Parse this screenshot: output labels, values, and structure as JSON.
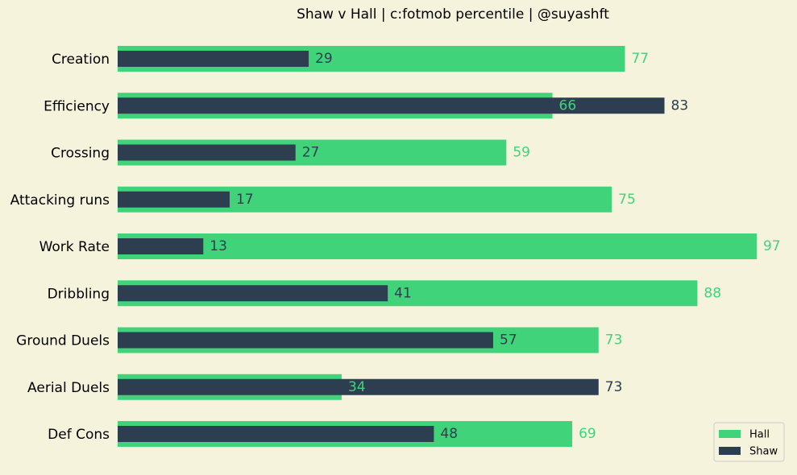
{
  "chart_data": {
    "type": "hbar-overlay",
    "title": "Shaw v Hall | c:fotmob percentile | @suyashft",
    "categories": [
      "Creation",
      "Efficiency",
      "Crossing",
      "Attacking runs",
      "Work Rate",
      "Dribbling",
      "Ground Duels",
      "Aerial Duels",
      "Def Cons"
    ],
    "series": [
      {
        "name": "Hall",
        "color": "#41d37a",
        "values": [
          77,
          66,
          59,
          75,
          97,
          88,
          73,
          34,
          69
        ]
      },
      {
        "name": "Shaw",
        "color": "#2c3e50",
        "values": [
          29,
          83,
          27,
          17,
          13,
          41,
          57,
          73,
          48
        ]
      }
    ],
    "xlim": [
      0,
      100
    ],
    "legend": "lower right"
  }
}
